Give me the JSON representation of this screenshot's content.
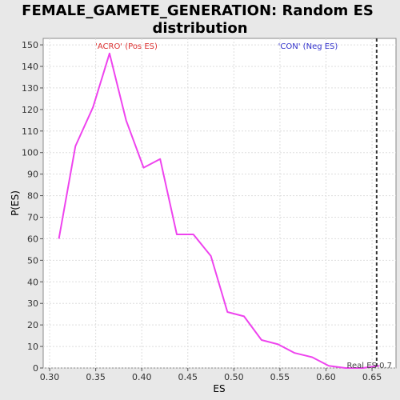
{
  "chart_data": {
    "type": "line",
    "title_line1": "FEMALE_GAMETE_GENERATION: Random ES",
    "title_line2": "distribution",
    "xlabel": "ES",
    "ylabel": "P(ES)",
    "xlim": [
      0.293,
      0.676
    ],
    "ylim": [
      0,
      153
    ],
    "x_ticks": [
      0.3,
      0.35,
      0.4,
      0.45,
      0.5,
      0.55,
      0.6,
      0.65
    ],
    "x_tick_labels": [
      "0.30",
      "0.35",
      "0.40",
      "0.45",
      "0.50",
      "0.55",
      "0.60",
      "0.65"
    ],
    "y_ticks": [
      0,
      10,
      20,
      30,
      40,
      50,
      60,
      70,
      80,
      90,
      100,
      110,
      120,
      130,
      140,
      150
    ],
    "y_tick_labels": [
      "0",
      "10",
      "20",
      "30",
      "40",
      "50",
      "60",
      "70",
      "80",
      "90",
      "100",
      "110",
      "120",
      "130",
      "140",
      "150"
    ],
    "grid": true,
    "series": [
      {
        "color": "#ee44ee",
        "x": [
          0.31,
          0.328,
          0.347,
          0.365,
          0.383,
          0.402,
          0.42,
          0.438,
          0.456,
          0.475,
          0.493,
          0.511,
          0.53,
          0.548,
          0.566,
          0.585,
          0.603,
          0.621,
          0.64,
          0.658
        ],
        "y": [
          60,
          103,
          121,
          146,
          115,
          93,
          97,
          62,
          62,
          52,
          26,
          24,
          13,
          11,
          7,
          5,
          1,
          0,
          0,
          1
        ]
      }
    ],
    "annotations": {
      "pos_label": "'ACRO' (Pos ES)",
      "pos_color": "#dd3333",
      "neg_label": "'CON' (Neg ES)",
      "neg_color": "#3333cc",
      "real_es_label": "Real ES 0.7",
      "real_es_value": 0.655
    },
    "background_color": "#e8e8e8",
    "plot_background": "#ffffff"
  }
}
